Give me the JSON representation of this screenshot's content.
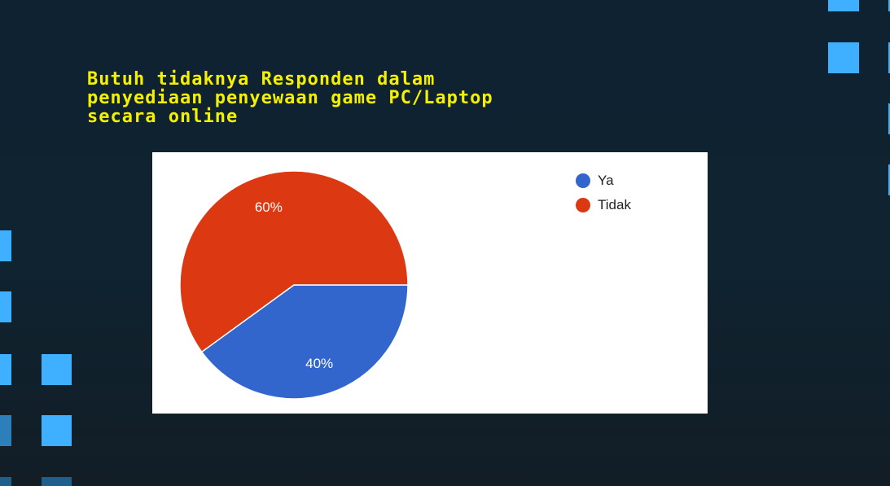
{
  "slide": {
    "title": "Butuh tidaknya Responden dalam\npenyediaan penyewaan game PC/Laptop\nsecara online"
  },
  "chart_data": {
    "type": "pie",
    "title": "",
    "slices": [
      {
        "label": "Ya",
        "value": 40,
        "value_label": "40%",
        "color": "#3366cc"
      },
      {
        "label": "Tidak",
        "value": 60,
        "value_label": "60%",
        "color": "#dc3912"
      }
    ],
    "legend_position": "top-right"
  }
}
